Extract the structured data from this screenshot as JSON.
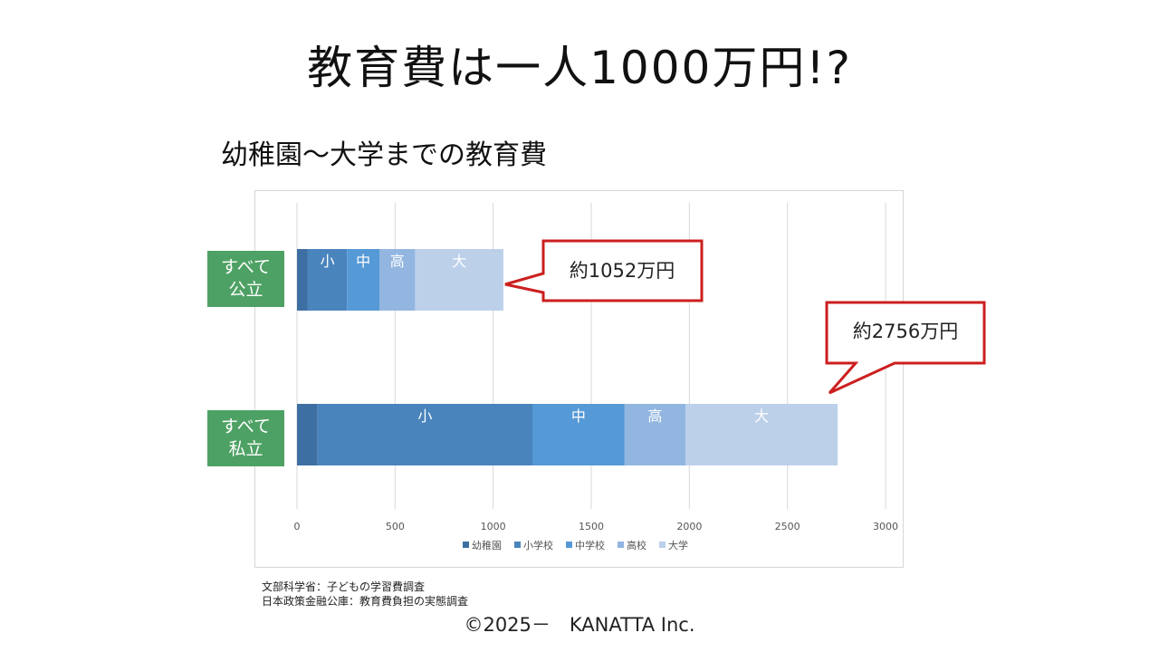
{
  "slide": {
    "title": "教育費は一人1000万円!?",
    "chart_title": "幼稚園～大学までの教育費",
    "sources": [
      "文部科学省：子どもの学習費調査",
      "日本政策金融公庫：教育費負担の実態調査"
    ],
    "copyright": "©2025－　KANATTA Inc."
  },
  "rows": [
    {
      "label_line1": "すべて",
      "label_line2": "公立",
      "callout": "約1052万円"
    },
    {
      "label_line1": "すべて",
      "label_line2": "私立",
      "callout": "約2756万円"
    }
  ],
  "chart_data": {
    "type": "bar",
    "orientation": "horizontal",
    "stacked": true,
    "title": "幼稚園～大学までの教育費",
    "categories": [
      "すべて公立",
      "すべて私立"
    ],
    "series": [
      {
        "name": "幼稚園",
        "values": [
          55,
          105
        ],
        "color": "#3d6fa3",
        "segment_label": ""
      },
      {
        "name": "小学校",
        "values": [
          200,
          1095
        ],
        "color": "#4a84bd",
        "segment_label": "小"
      },
      {
        "name": "中学校",
        "values": [
          165,
          470
        ],
        "color": "#5599d6",
        "segment_label": "中"
      },
      {
        "name": "高校",
        "values": [
          182,
          310
        ],
        "color": "#92b6e0",
        "segment_label": "高"
      },
      {
        "name": "大学",
        "values": [
          450,
          776
        ],
        "color": "#bcd0ea",
        "segment_label": "大"
      }
    ],
    "totals": [
      1052,
      2756
    ],
    "xlim": [
      0,
      3000
    ],
    "x_ticks": [
      0,
      500,
      1000,
      1500,
      2000,
      2500,
      3000
    ],
    "grid": true,
    "legend_position": "bottom"
  }
}
